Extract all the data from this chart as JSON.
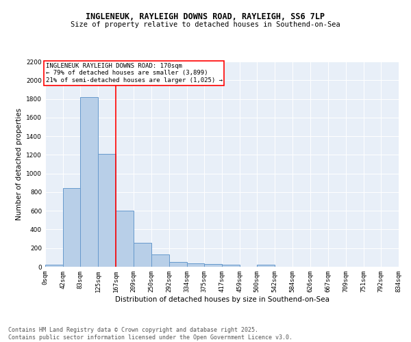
{
  "title1": "INGLENEUK, RAYLEIGH DOWNS ROAD, RAYLEIGH, SS6 7LP",
  "title2": "Size of property relative to detached houses in Southend-on-Sea",
  "xlabel": "Distribution of detached houses by size in Southend-on-Sea",
  "ylabel": "Number of detached properties",
  "bar_values": [
    25,
    845,
    1820,
    1210,
    600,
    255,
    135,
    50,
    40,
    30,
    20,
    0,
    20,
    0,
    0,
    0,
    0,
    0,
    0,
    0
  ],
  "bin_edges": [
    0,
    42,
    83,
    125,
    167,
    209,
    250,
    292,
    334,
    375,
    417,
    459,
    500,
    542,
    584,
    626,
    667,
    709,
    751,
    792,
    834
  ],
  "tick_labels": [
    "0sqm",
    "42sqm",
    "83sqm",
    "125sqm",
    "167sqm",
    "209sqm",
    "250sqm",
    "292sqm",
    "334sqm",
    "375sqm",
    "417sqm",
    "459sqm",
    "500sqm",
    "542sqm",
    "584sqm",
    "626sqm",
    "667sqm",
    "709sqm",
    "751sqm",
    "792sqm",
    "834sqm"
  ],
  "bar_color": "#b8cfe8",
  "bar_edge_color": "#6699cc",
  "ref_line_x": 167,
  "ref_line_color": "red",
  "annotation_text": "INGLENEUK RAYLEIGH DOWNS ROAD: 170sqm\n← 79% of detached houses are smaller (3,899)\n21% of semi-detached houses are larger (1,025) →",
  "annotation_box_color": "white",
  "annotation_box_edge": "red",
  "ylim": [
    0,
    2200
  ],
  "yticks": [
    0,
    200,
    400,
    600,
    800,
    1000,
    1200,
    1400,
    1600,
    1800,
    2000,
    2200
  ],
  "bg_color": "#e8eff8",
  "footnote": "Contains HM Land Registry data © Crown copyright and database right 2025.\nContains public sector information licensed under the Open Government Licence v3.0.",
  "title1_fontsize": 8.5,
  "title2_fontsize": 7.5,
  "xlabel_fontsize": 7.5,
  "ylabel_fontsize": 7.5,
  "tick_fontsize": 6.5,
  "annotation_fontsize": 6.5,
  "footnote_fontsize": 6.0
}
